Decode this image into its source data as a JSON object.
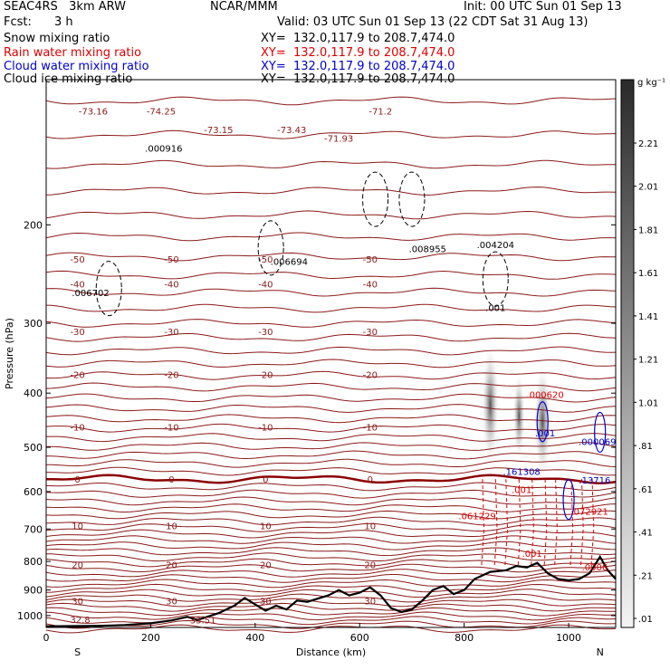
{
  "header": {
    "model": "SEAC4RS   3km ARW",
    "org": "NCAR/MMM",
    "init": "Init: 00 UTC Sun 01 Sep 13",
    "fcst_label": "Fcst:",
    "fcst_value": "3 h",
    "valid": "Valid: 03 UTC Sun 01 Sep 13 (22 CDT Sat 31 Aug 13)"
  },
  "legend": [
    {
      "label": "Snow mixing ratio",
      "xy": "XY=  132.0,117.9 to 208.7,474.0",
      "color": "#000000"
    },
    {
      "label": "Rain water mixing ratio",
      "xy": "XY=  132.0,117.9 to 208.7,474.0",
      "color": "#dd0000"
    },
    {
      "label": "Cloud water mixing ratio",
      "xy": "XY=  132.0,117.9 to 208.7,474.0",
      "color": "#0000cc"
    },
    {
      "label": "Cloud ice mixing ratio",
      "xy": "XY=  132.0,117.9 to 208.7,474.0",
      "color": "#000000"
    }
  ],
  "colorbar": {
    "unit": "g kg⁻¹",
    "ticks": [
      "2.21",
      "2.01",
      "1.81",
      "1.61",
      "1.41",
      "1.21",
      "1.01",
      ".81",
      ".61",
      ".41",
      ".21",
      ".01"
    ]
  },
  "chart_data": {
    "type": "cross-section",
    "xlabel": "Distance (km)",
    "ylabel": "Pressure (hPa)",
    "xlim": [
      0,
      1090
    ],
    "ylim": [
      1050,
      110
    ],
    "y_scale": "log",
    "x_ticks": [
      0,
      200,
      400,
      600,
      800,
      1000
    ],
    "y_ticks": [
      200,
      300,
      400,
      500,
      600,
      700,
      800,
      900,
      1000
    ],
    "end_labels": {
      "left": "S",
      "right": "N"
    },
    "temperature_contours": [
      {
        "value": "-73.16",
        "pressure": 125
      },
      {
        "value": "-74.25",
        "pressure": 125
      },
      {
        "value": "-73.15",
        "pressure": 135
      },
      {
        "value": "-73.43",
        "pressure": 135
      },
      {
        "value": "-71.93",
        "pressure": 140
      },
      {
        "value": "-71.2",
        "pressure": 125
      },
      {
        "value": "-50",
        "pressure": 230
      },
      {
        "value": "-40",
        "pressure": 255
      },
      {
        "value": "-30",
        "pressure": 310
      },
      {
        "value": "-20",
        "pressure": 370
      },
      {
        "value": "-10",
        "pressure": 460
      },
      {
        "value": "0",
        "pressure": 570
      },
      {
        "value": "10",
        "pressure": 690
      },
      {
        "value": "20",
        "pressure": 810
      },
      {
        "value": "30",
        "pressure": 940
      }
    ],
    "labels": [
      {
        "text": ".000916",
        "x": 225,
        "p": 148
      },
      {
        "text": ".006702",
        "x": 85,
        "p": 268
      },
      {
        "text": ".006694",
        "x": 465,
        "p": 236
      },
      {
        "text": ".008955",
        "x": 730,
        "p": 224
      },
      {
        "text": ".004204",
        "x": 860,
        "p": 220
      },
      {
        "text": ".001",
        "x": 860,
        "p": 285
      },
      {
        "text": ".000620",
        "x": 955,
        "p": 408
      },
      {
        "text": ".001",
        "x": 955,
        "p": 478
      },
      {
        "text": ".000069",
        "x": 1055,
        "p": 495
      },
      {
        "text": ".161308",
        "x": 910,
        "p": 560
      },
      {
        "text": ".13716",
        "x": 1050,
        "p": 580
      },
      {
        "text": ".001",
        "x": 910,
        "p": 603
      },
      {
        "text": ".061229",
        "x": 825,
        "p": 672
      },
      {
        "text": ".072921",
        "x": 1040,
        "p": 660
      },
      {
        "text": ".001",
        "x": 930,
        "p": 785
      },
      {
        "text": ".0006",
        "x": 1050,
        "p": 830
      },
      {
        "text": "32.8",
        "x": 65,
        "p": 1030
      },
      {
        "text": "33.51",
        "x": 300,
        "p": 1032
      }
    ],
    "surface_pressure": [
      [
        0,
        1045
      ],
      [
        100,
        1043
      ],
      [
        150,
        1040
      ],
      [
        200,
        1032
      ],
      [
        240,
        1020
      ],
      [
        270,
        1005
      ],
      [
        290,
        1018
      ],
      [
        330,
        990
      ],
      [
        360,
        960
      ],
      [
        380,
        930
      ],
      [
        400,
        955
      ],
      [
        420,
        980
      ],
      [
        440,
        960
      ],
      [
        460,
        975
      ],
      [
        480,
        940
      ],
      [
        500,
        945
      ],
      [
        540,
        920
      ],
      [
        560,
        900
      ],
      [
        580,
        920
      ],
      [
        600,
        910
      ],
      [
        620,
        890
      ],
      [
        640,
        920
      ],
      [
        660,
        970
      ],
      [
        680,
        985
      ],
      [
        700,
        975
      ],
      [
        720,
        940
      ],
      [
        740,
        900
      ],
      [
        760,
        885
      ],
      [
        780,
        915
      ],
      [
        800,
        900
      ],
      [
        820,
        860
      ],
      [
        850,
        835
      ],
      [
        880,
        830
      ],
      [
        900,
        815
      ],
      [
        920,
        820
      ],
      [
        940,
        805
      ],
      [
        960,
        840
      ],
      [
        980,
        860
      ],
      [
        1000,
        865
      ],
      [
        1020,
        860
      ],
      [
        1040,
        840
      ],
      [
        1060,
        785
      ],
      [
        1075,
        830
      ],
      [
        1090,
        860
      ]
    ]
  }
}
